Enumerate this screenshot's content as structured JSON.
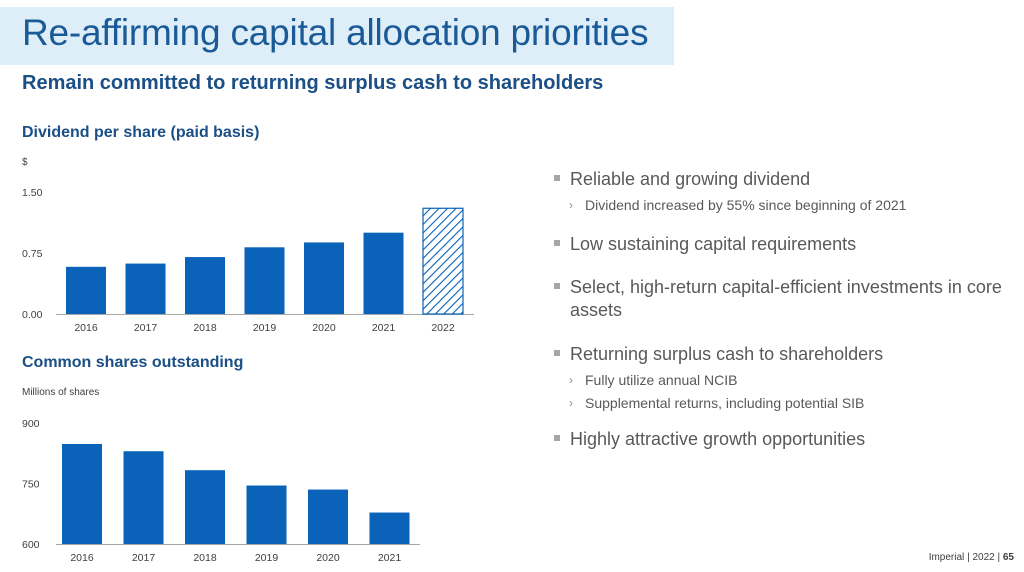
{
  "header": {
    "title": "Re-affirming capital allocation priorities",
    "subtitle": "Remain committed to returning surplus cash to shareholders"
  },
  "colors": {
    "bar": "#0a63b8",
    "title": "#1a5a96",
    "band": "#ddeef9"
  },
  "chart_data": [
    {
      "type": "bar",
      "title": "Dividend per share (paid basis)",
      "ylabel": "$",
      "categories": [
        "2016",
        "2017",
        "2018",
        "2019",
        "2020",
        "2021",
        "2022"
      ],
      "values": [
        0.58,
        0.62,
        0.7,
        0.82,
        0.88,
        1.0,
        1.3
      ],
      "hatched_categories": [
        "2022"
      ],
      "yticks": [
        "0.00",
        "0.75",
        "1.50"
      ],
      "ylim": [
        0,
        1.5
      ],
      "grid": false
    },
    {
      "type": "bar",
      "title": "Common shares outstanding",
      "ylabel": "Millions of shares",
      "categories": [
        "2016",
        "2017",
        "2018",
        "2019",
        "2020",
        "2021"
      ],
      "values": [
        848,
        830,
        783,
        745,
        735,
        678
      ],
      "yticks": [
        "600",
        "750",
        "900"
      ],
      "ylim": [
        600,
        900
      ],
      "grid": false
    }
  ],
  "bullets": [
    {
      "text": "Reliable and growing dividend",
      "subs": [
        "Dividend increased by 55% since beginning of 2021"
      ]
    },
    {
      "text": "Low sustaining capital requirements",
      "subs": []
    },
    {
      "text": "Select, high-return capital-efficient investments in core assets",
      "subs": []
    },
    {
      "text": "Returning surplus cash to shareholders",
      "subs": [
        "Fully utilize annual NCIB",
        "Supplemental returns, including potential SIB"
      ]
    },
    {
      "text": "Highly attractive growth opportunities",
      "subs": []
    }
  ],
  "footer": {
    "brand": "Imperial",
    "sep1": "|",
    "year": "2022",
    "sep2": "|",
    "page": "65"
  }
}
